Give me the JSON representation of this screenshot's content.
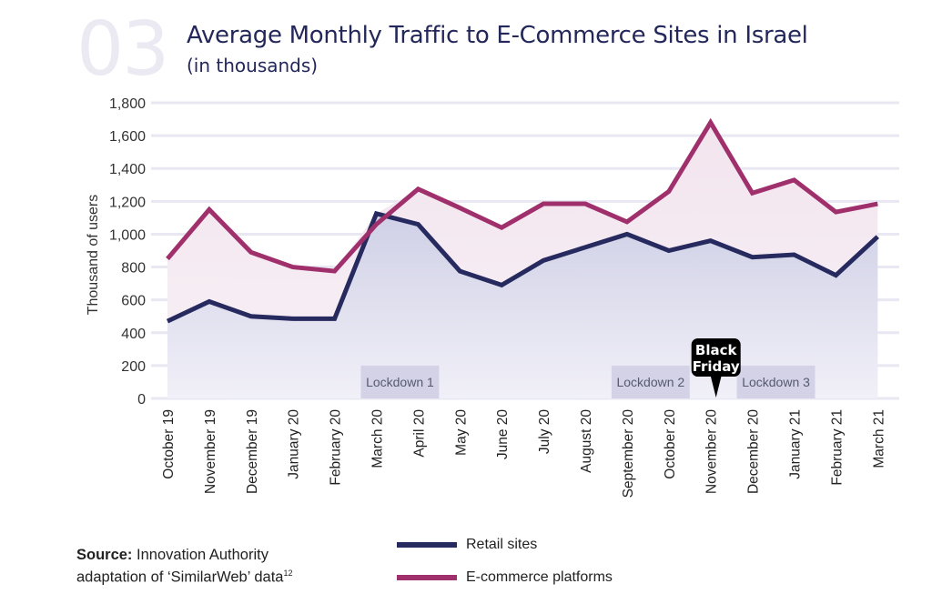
{
  "header": {
    "number": "03",
    "title": "Average Monthly Traffic to E-Commerce Sites in Israel",
    "subtitle": "(in thousands)"
  },
  "source": {
    "label": "Source:",
    "text_line1": "Innovation Authority",
    "text_line2": "adaptation of ‘SimilarWeb’ data",
    "footnote": "12"
  },
  "colors": {
    "retail": "#262a5e",
    "ecommerce": "#a0306c",
    "lockdown_fill": "#d3d2e6",
    "gridline": "#e8e7f2",
    "black_friday": "#000000"
  },
  "chart_data": {
    "type": "area",
    "title": "Average Monthly Traffic to E-Commerce Sites in Israel",
    "subtitle": "(in thousands)",
    "xlabel": "",
    "ylabel": "Thousand of users",
    "ylim": [
      0,
      1800
    ],
    "yticks": [
      0,
      200,
      400,
      600,
      800,
      1000,
      1200,
      1400,
      1600,
      1800
    ],
    "ytick_labels": [
      "0",
      "200",
      "400",
      "600",
      "800",
      "1,000",
      "1,200",
      "1,400",
      "1,600",
      "1,800"
    ],
    "grid": true,
    "legend_position": "bottom",
    "categories": [
      "October 19",
      "November 19",
      "December 19",
      "January 20",
      "February 20",
      "March 20",
      "April 20",
      "May 20",
      "June 20",
      "July 20",
      "August 20",
      "September 20",
      "October 20",
      "November 20",
      "December 20",
      "January 21",
      "February 21",
      "March 21"
    ],
    "series": [
      {
        "name": "Retail sites",
        "key": "retail",
        "values": [
          470,
          590,
          500,
          485,
          485,
          1125,
          1060,
          775,
          690,
          840,
          920,
          1000,
          900,
          960,
          860,
          875,
          750,
          985
        ]
      },
      {
        "name": "E-commerce platforms",
        "key": "ecommerce",
        "values": [
          850,
          1150,
          890,
          800,
          775,
          1060,
          1275,
          1160,
          1040,
          1185,
          1185,
          1075,
          1260,
          1680,
          1250,
          1330,
          1135,
          1185
        ]
      }
    ],
    "annotations": [
      {
        "type": "band",
        "label": "Lockdown 1",
        "from": "March 20",
        "to": "April 20"
      },
      {
        "type": "band",
        "label": "Lockdown 2",
        "from": "September 20",
        "to": "October 20"
      },
      {
        "type": "band",
        "label": "Lockdown 3",
        "from": "December 20",
        "to": "January 21"
      },
      {
        "type": "callout",
        "label": "Black Friday",
        "at": "November 20"
      }
    ]
  }
}
